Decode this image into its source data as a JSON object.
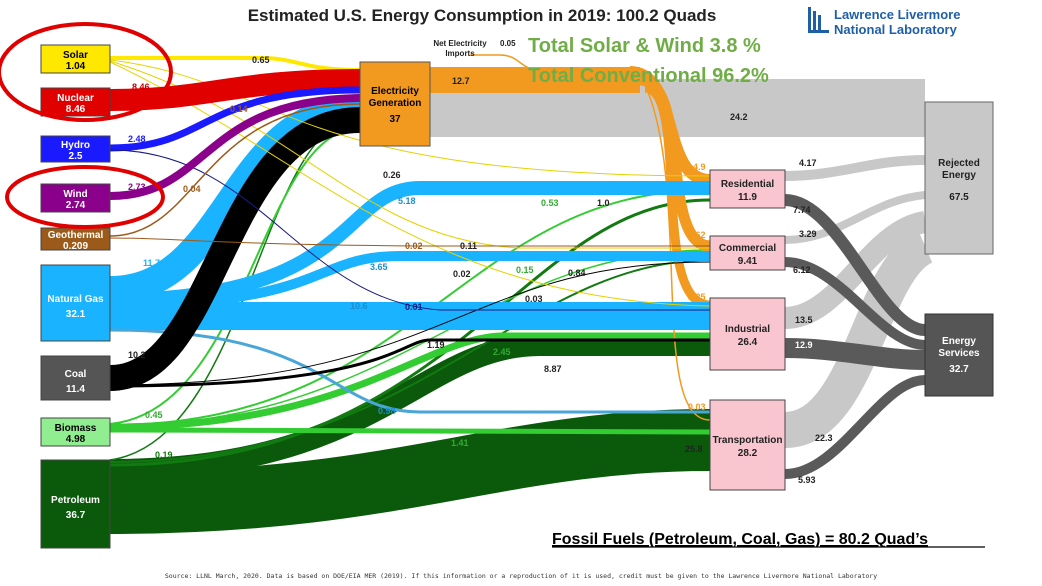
{
  "title": "Estimated U.S. Energy Consumption in 2019: 100.2 Quads",
  "logo": {
    "line1": "Lawrence Livermore",
    "line2": "National Laboratory",
    "color": "#1f5fa8"
  },
  "notes": {
    "solar_wind": "Total Solar & Wind 3.8 %",
    "conventional": "Total Conventional 96.2%",
    "fossil": "Fossil Fuels (Petroleum, Coal, Gas) = 80.2 Quad’s"
  },
  "net_imports": {
    "label_line1": "Net Electricity",
    "label_line2": "Imports",
    "value": "0.05"
  },
  "sources": [
    {
      "id": "solar",
      "name": "Solar",
      "value": "1.04",
      "color": "#ffe800"
    },
    {
      "id": "nuclear",
      "name": "Nuclear",
      "value": "8.46",
      "color": "#e00000"
    },
    {
      "id": "hydro",
      "name": "Hydro",
      "value": "2.5",
      "color": "#1a1aff"
    },
    {
      "id": "wind",
      "name": "Wind",
      "value": "2.74",
      "color": "#8b008b"
    },
    {
      "id": "geothermal",
      "name": "Geothermal",
      "value": "0.209",
      "color": "#9c5a1a"
    },
    {
      "id": "natural_gas",
      "name": "Natural Gas",
      "value": "32.1",
      "color": "#19b3ff"
    },
    {
      "id": "coal",
      "name": "Coal",
      "value": "11.4",
      "color": "#555555"
    },
    {
      "id": "biomass",
      "name": "Biomass",
      "value": "4.98",
      "color": "#90ee90"
    },
    {
      "id": "petroleum",
      "name": "Petroleum",
      "value": "36.7",
      "color": "#0b5a0b"
    }
  ],
  "electricity": {
    "name_line1": "Electricity",
    "name_line2": "Generation",
    "value": "37",
    "color": "#f29a1f"
  },
  "sectors": [
    {
      "id": "residential",
      "name": "Residential",
      "value": "11.9",
      "color": "#f9c6cf"
    },
    {
      "id": "commercial",
      "name": "Commercial",
      "value": "9.41",
      "color": "#f9c6cf"
    },
    {
      "id": "industrial",
      "name": "Industrial",
      "value": "26.4",
      "color": "#f9c6cf"
    },
    {
      "id": "transportation",
      "name": "Transportation",
      "value": "28.2",
      "color": "#f9c6cf"
    }
  ],
  "rejected": {
    "name_line1": "Rejected",
    "name_line2": "Energy",
    "value": "67.5",
    "color": "#c8c8c8"
  },
  "services": {
    "name_line1": "Energy",
    "name_line2": "Services",
    "value": "32.7",
    "color": "#555555"
  },
  "flow_labels": {
    "solar_elec": "0.65",
    "nuclear_elec": "8.46",
    "hydro_elec": "2.48",
    "wind_elec": "2.73",
    "geo_elec": "0.14",
    "geo_other": "0.04",
    "gas_elec": "11.7",
    "coal_elec": "10.2",
    "biomass_elec": "0.45",
    "petro_elec": "0.19",
    "elec_out": "12.7",
    "elec_rejected": "24.2",
    "elec_res": "4.9",
    "elec_com": "4.62",
    "elec_ind": "3.25",
    "elec_trans": "0.03",
    "solar_res": "0.26",
    "gas_res": "5.18",
    "bio_res": "0.53",
    "petro_res": "1.0",
    "geo_com": "0.02",
    "solar_com": "0.11",
    "gas_com": "3.65",
    "bio_com": "0.15",
    "petro_com": "0.84",
    "coal_com": "0.02",
    "solar_ind": "0.03",
    "hydro_ind": "0.01",
    "gas_ind": "10.6",
    "coal_ind": "1.19",
    "bio_ind": "2.45",
    "petro_ind": "8.87",
    "gas_trans": "0.98",
    "bio_trans": "1.41",
    "petro_trans": "25.8",
    "res_rej": "4.17",
    "res_srv": "7.74",
    "com_rej": "3.29",
    "com_srv": "6.12",
    "ind_rej": "13.5",
    "ind_srv": "12.9",
    "trans_rej": "22.3",
    "trans_srv": "5.93"
  },
  "source_note": "Source: LLNL March, 2020. Data is based on DOE/EIA MER (2019). If this information or a reproduction of it is used, credit must be given to the Lawrence Livermore National Laboratory"
}
